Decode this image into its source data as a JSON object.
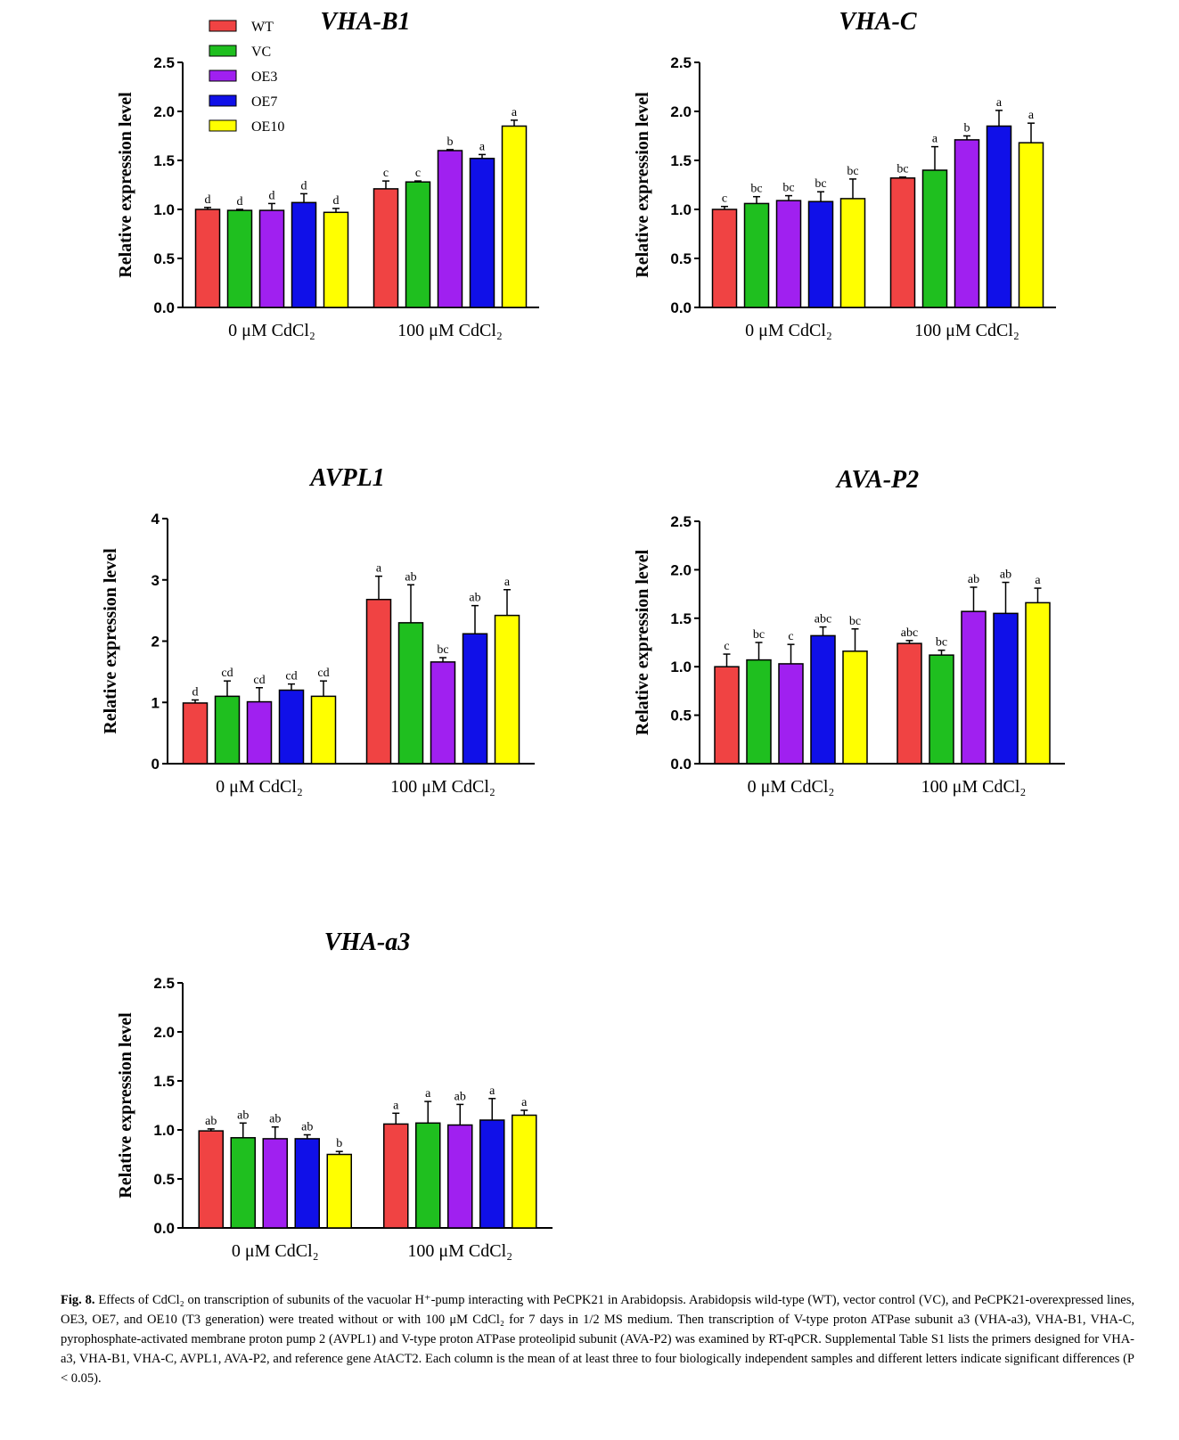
{
  "chart_data": [
    {
      "type": "bar",
      "title": "VHA-B1",
      "ylabel": "Relative expression level",
      "ylim": [
        0,
        2.5
      ],
      "yticks": [
        "0.0",
        "0.5",
        "1.0",
        "1.5",
        "2.0",
        "2.5"
      ],
      "categories": [
        "0 μM CdCl₂",
        "100 μM CdCl₂"
      ],
      "series": [
        {
          "name": "WT",
          "values": [
            1.0,
            1.21
          ],
          "errors": [
            0.02,
            0.08
          ],
          "letters": [
            "d",
            "c"
          ]
        },
        {
          "name": "VC",
          "values": [
            0.99,
            1.28
          ],
          "errors": [
            0.01,
            0.01
          ],
          "letters": [
            "d",
            "c"
          ]
        },
        {
          "name": "OE3",
          "values": [
            0.99,
            1.6
          ],
          "errors": [
            0.07,
            0.01
          ],
          "letters": [
            "d",
            "b"
          ]
        },
        {
          "name": "OE7",
          "values": [
            1.07,
            1.52
          ],
          "errors": [
            0.09,
            0.04
          ],
          "letters": [
            "d",
            "a"
          ]
        },
        {
          "name": "OE10",
          "values": [
            0.97,
            1.85
          ],
          "errors": [
            0.04,
            0.06
          ],
          "letters": [
            "d",
            "a"
          ]
        }
      ]
    },
    {
      "type": "bar",
      "title": "VHA-C",
      "ylabel": "Relative expression level",
      "ylim": [
        0,
        2.5
      ],
      "yticks": [
        "0.0",
        "0.5",
        "1.0",
        "1.5",
        "2.0",
        "2.5"
      ],
      "categories": [
        "0 μM CdCl₂",
        "100 μM CdCl₂"
      ],
      "series": [
        {
          "name": "WT",
          "values": [
            1.0,
            1.32
          ],
          "errors": [
            0.03,
            0.01
          ],
          "letters": [
            "c",
            "bc"
          ]
        },
        {
          "name": "VC",
          "values": [
            1.06,
            1.4
          ],
          "errors": [
            0.07,
            0.24
          ],
          "letters": [
            "bc",
            "a"
          ]
        },
        {
          "name": "OE3",
          "values": [
            1.09,
            1.71
          ],
          "errors": [
            0.05,
            0.04
          ],
          "letters": [
            "bc",
            "b"
          ]
        },
        {
          "name": "OE7",
          "values": [
            1.08,
            1.85
          ],
          "errors": [
            0.1,
            0.16
          ],
          "letters": [
            "bc",
            "a"
          ]
        },
        {
          "name": "OE10",
          "values": [
            1.11,
            1.68
          ],
          "errors": [
            0.2,
            0.2
          ],
          "letters": [
            "bc",
            "a"
          ]
        }
      ]
    },
    {
      "type": "bar",
      "title": "AVPL1",
      "ylabel": "Relative expression level",
      "ylim": [
        0,
        4
      ],
      "yticks": [
        "0",
        "1",
        "2",
        "3",
        "4"
      ],
      "categories": [
        "0 μM CdCl₂",
        "100 μM CdCl₂"
      ],
      "series": [
        {
          "name": "WT",
          "values": [
            0.99,
            2.68
          ],
          "errors": [
            0.05,
            0.38
          ],
          "letters": [
            "d",
            "a"
          ]
        },
        {
          "name": "VC",
          "values": [
            1.1,
            2.3
          ],
          "errors": [
            0.25,
            0.62
          ],
          "letters": [
            "cd",
            "ab"
          ]
        },
        {
          "name": "OE3",
          "values": [
            1.01,
            1.66
          ],
          "errors": [
            0.23,
            0.07
          ],
          "letters": [
            "cd",
            "bc"
          ]
        },
        {
          "name": "OE7",
          "values": [
            1.2,
            2.12
          ],
          "errors": [
            0.1,
            0.46
          ],
          "letters": [
            "cd",
            "ab"
          ]
        },
        {
          "name": "OE10",
          "values": [
            1.1,
            2.42
          ],
          "errors": [
            0.25,
            0.42
          ],
          "letters": [
            "cd",
            "a"
          ]
        }
      ]
    },
    {
      "type": "bar",
      "title": "AVA-P2",
      "ylabel": "Relative expression level",
      "ylim": [
        0,
        2.5
      ],
      "yticks": [
        "0.0",
        "0.5",
        "1.0",
        "1.5",
        "2.0",
        "2.5"
      ],
      "categories": [
        "0 μM CdCl₂",
        "100 μM CdCl₂"
      ],
      "series": [
        {
          "name": "WT",
          "values": [
            1.0,
            1.24
          ],
          "errors": [
            0.13,
            0.03
          ],
          "letters": [
            "c",
            "abc"
          ]
        },
        {
          "name": "VC",
          "values": [
            1.07,
            1.12
          ],
          "errors": [
            0.18,
            0.05
          ],
          "letters": [
            "bc",
            "bc"
          ]
        },
        {
          "name": "OE3",
          "values": [
            1.03,
            1.57
          ],
          "errors": [
            0.2,
            0.25
          ],
          "letters": [
            "c",
            "ab"
          ]
        },
        {
          "name": "OE7",
          "values": [
            1.32,
            1.55
          ],
          "errors": [
            0.09,
            0.32
          ],
          "letters": [
            "abc",
            "ab"
          ]
        },
        {
          "name": "OE10",
          "values": [
            1.16,
            1.66
          ],
          "errors": [
            0.23,
            0.15
          ],
          "letters": [
            "bc",
            "a"
          ]
        }
      ]
    },
    {
      "type": "bar",
      "title": "VHA-a3",
      "ylabel": "Relative expression level",
      "ylim": [
        0,
        2.5
      ],
      "yticks": [
        "0.0",
        "0.5",
        "1.0",
        "1.5",
        "2.0",
        "2.5"
      ],
      "categories": [
        "0 μM CdCl₂",
        "100 μM CdCl₂"
      ],
      "series": [
        {
          "name": "WT",
          "values": [
            0.99,
            1.06
          ],
          "errors": [
            0.02,
            0.11
          ],
          "letters": [
            "ab",
            "a"
          ]
        },
        {
          "name": "VC",
          "values": [
            0.92,
            1.07
          ],
          "errors": [
            0.15,
            0.22
          ],
          "letters": [
            "ab",
            "a"
          ]
        },
        {
          "name": "OE3",
          "values": [
            0.91,
            1.05
          ],
          "errors": [
            0.12,
            0.21
          ],
          "letters": [
            "ab",
            "ab"
          ]
        },
        {
          "name": "OE7",
          "values": [
            0.91,
            1.1
          ],
          "errors": [
            0.04,
            0.22
          ],
          "letters": [
            "ab",
            "a"
          ]
        },
        {
          "name": "OE10",
          "values": [
            0.75,
            1.15
          ],
          "errors": [
            0.03,
            0.05
          ],
          "letters": [
            "b",
            "a"
          ]
        }
      ]
    }
  ],
  "legend": [
    {
      "label": "WT",
      "color": "#f04343"
    },
    {
      "label": "VC",
      "color": "#1fbf1f"
    },
    {
      "label": "OE3",
      "color": "#a020f0"
    },
    {
      "label": "OE7",
      "color": "#1010e8"
    },
    {
      "label": "OE10",
      "color": "#ffff00"
    }
  ],
  "caption": {
    "label": "Fig. 8.",
    "text": "Effects of CdCl₂ on transcription of subunits of the vacuolar H⁺-pump interacting with PeCPK21 in Arabidopsis. Arabidopsis wild-type (WT), vector control (VC), and PeCPK21-overexpressed lines, OE3, OE7, and OE10 (T3 generation) were treated without or with 100 μM CdCl₂ for 7 days in 1/2 MS medium. Then transcription of V-type proton ATPase subunit a3 (VHA-a3), VHA-B1, VHA-C, pyrophosphate-activated membrane proton pump 2 (AVPL1) and V-type proton ATPase proteolipid subunit (AVA-P2) was examined by RT-qPCR. Supplemental Table S1 lists the primers designed for VHA-a3, VHA-B1, VHA-C, AVPL1, AVA-P2, and reference gene AtACT2. Each column is the mean of at least three to four biologically independent samples and different letters indicate significant differences (P < 0.05)."
  }
}
